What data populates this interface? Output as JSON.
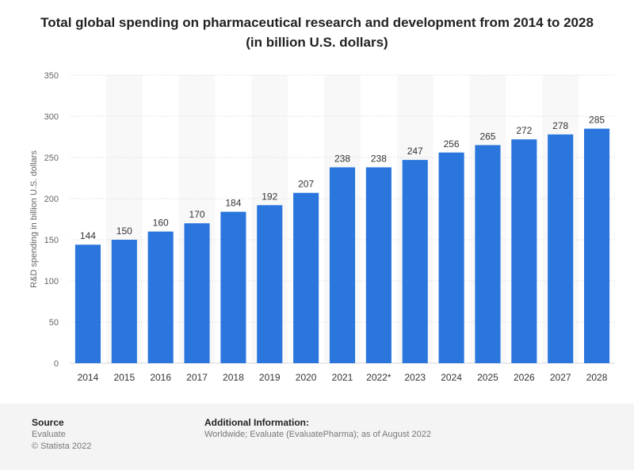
{
  "chart_data": {
    "type": "bar",
    "title": "Total global spending on pharmaceutical research and development from 2014 to 2028 (in billion U.S. dollars)",
    "ylabel": "R&D spending in billion U.S. dollars",
    "xlabel": "",
    "categories": [
      "2014",
      "2015",
      "2016",
      "2017",
      "2018",
      "2019",
      "2020",
      "2021",
      "2022*",
      "2023",
      "2024",
      "2025",
      "2026",
      "2027",
      "2028"
    ],
    "values": [
      144,
      150,
      160,
      170,
      184,
      192,
      207,
      238,
      238,
      247,
      256,
      265,
      272,
      278,
      285
    ],
    "ylim": [
      0,
      350
    ],
    "yticks": [
      0,
      50,
      100,
      150,
      200,
      250,
      300,
      350
    ],
    "grid": true,
    "bar_color": "#2a76dd",
    "alt_band_color": "#f8f8f8"
  },
  "footer": {
    "source_heading": "Source",
    "source_lines": [
      "Evaluate",
      "© Statista 2022"
    ],
    "info_heading": "Additional Information:",
    "info_text": "Worldwide; Evaluate (EvaluatePharma); as of August 2022"
  }
}
